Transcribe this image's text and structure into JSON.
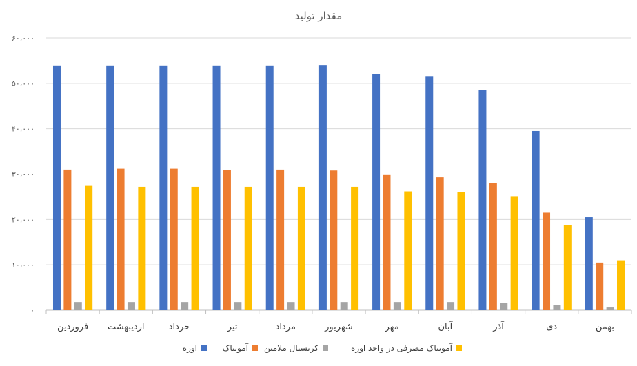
{
  "chart_data": {
    "type": "bar",
    "title": "مقدار تولید",
    "xlabel": "",
    "ylabel": "",
    "ylim": [
      0,
      60000
    ],
    "yticks": [
      0,
      10000,
      20000,
      30000,
      40000,
      50000,
      60000
    ],
    "ytick_labels": [
      "۰",
      "۱۰،۰۰۰",
      "۲۰،۰۰۰",
      "۳۰،۰۰۰",
      "۴۰،۰۰۰",
      "۵۰،۰۰۰",
      "۶۰،۰۰۰"
    ],
    "grid": true,
    "legend_position": "bottom",
    "categories": [
      "فروردین",
      "اردیبهشت",
      "خرداد",
      "تیر",
      "مرداد",
      "شهریور",
      "مهر",
      "آبان",
      "آذر",
      "دی",
      "بهمن"
    ],
    "series": [
      {
        "name": "اوره",
        "color": "#4472C4",
        "values": [
          53800,
          53800,
          53800,
          53800,
          53800,
          53900,
          52100,
          51600,
          48600,
          39500,
          20500
        ]
      },
      {
        "name": "آمونیاک",
        "color": "#ED7D31",
        "values": [
          31000,
          31200,
          31200,
          30900,
          31000,
          30800,
          29800,
          29300,
          28000,
          21500,
          10500
        ]
      },
      {
        "name": "کریستال ملامین",
        "color": "#A5A5A5",
        "values": [
          1800,
          1800,
          1800,
          1800,
          1800,
          1800,
          1800,
          1800,
          1600,
          1200,
          600
        ]
      },
      {
        "name": "آمونیاک مصرفی در واحد اوره",
        "color": "#FFC000",
        "values": [
          27400,
          27200,
          27200,
          27200,
          27200,
          27200,
          26200,
          26100,
          25000,
          18700,
          11000
        ]
      }
    ]
  }
}
